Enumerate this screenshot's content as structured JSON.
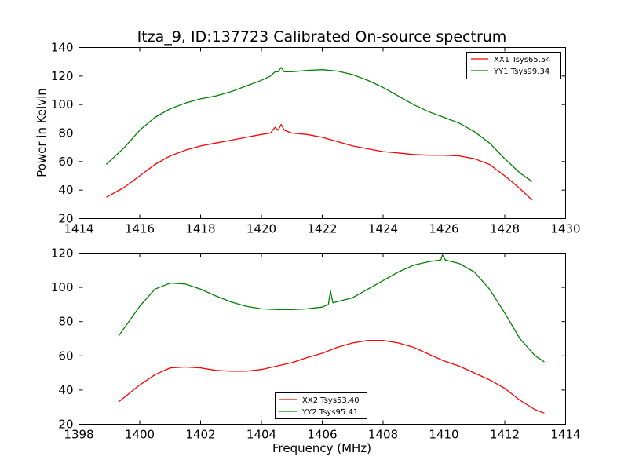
{
  "chart_data": [
    {
      "type": "line",
      "title": "Itza_9, ID:137723 Calibrated On-source spectrum",
      "xlabel": "",
      "ylabel": "Power in Kelvin",
      "xlim": [
        1414,
        1430
      ],
      "ylim": [
        20,
        140
      ],
      "xticks": [
        "1414",
        "1416",
        "1418",
        "1420",
        "1422",
        "1424",
        "1426",
        "1428",
        "1430"
      ],
      "yticks": [
        "20",
        "40",
        "60",
        "80",
        "100",
        "120",
        "140"
      ],
      "legend_position": "upper-right",
      "grid": false,
      "series": [
        {
          "name": "XX1 Tsys65.54",
          "color": "#ff0000",
          "points": [
            [
              1414.9,
              35
            ],
            [
              1415.5,
              42
            ],
            [
              1416,
              50
            ],
            [
              1416.5,
              58
            ],
            [
              1417,
              64
            ],
            [
              1417.5,
              68
            ],
            [
              1418,
              71
            ],
            [
              1418.5,
              73
            ],
            [
              1419,
              75
            ],
            [
              1419.5,
              77
            ],
            [
              1420,
              79
            ],
            [
              1420.3,
              80
            ],
            [
              1420.45,
              84
            ],
            [
              1420.55,
              82
            ],
            [
              1420.65,
              86
            ],
            [
              1420.75,
              82
            ],
            [
              1421,
              80
            ],
            [
              1421.5,
              79
            ],
            [
              1422,
              77
            ],
            [
              1422.5,
              74
            ],
            [
              1423,
              71
            ],
            [
              1423.5,
              69
            ],
            [
              1424,
              67
            ],
            [
              1424.5,
              66
            ],
            [
              1425,
              65
            ],
            [
              1425.5,
              64.5
            ],
            [
              1426,
              64.5
            ],
            [
              1426.5,
              64
            ],
            [
              1427,
              62
            ],
            [
              1427.5,
              58
            ],
            [
              1428,
              50
            ],
            [
              1428.5,
              41
            ],
            [
              1428.9,
              33
            ]
          ]
        },
        {
          "name": "YY1 Tsys99.34",
          "color": "#008000",
          "points": [
            [
              1414.9,
              58
            ],
            [
              1415.5,
              70
            ],
            [
              1416,
              82
            ],
            [
              1416.5,
              91
            ],
            [
              1417,
              97
            ],
            [
              1417.5,
              101
            ],
            [
              1418,
              104
            ],
            [
              1418.5,
              106
            ],
            [
              1419,
              109
            ],
            [
              1419.5,
              113
            ],
            [
              1420,
              117
            ],
            [
              1420.3,
              120
            ],
            [
              1420.45,
              123
            ],
            [
              1420.55,
              123
            ],
            [
              1420.65,
              126
            ],
            [
              1420.75,
              123
            ],
            [
              1421,
              123
            ],
            [
              1421.5,
              124
            ],
            [
              1422,
              124.5
            ],
            [
              1422.5,
              123.5
            ],
            [
              1423,
              121
            ],
            [
              1423.5,
              117
            ],
            [
              1424,
              112
            ],
            [
              1424.5,
              106
            ],
            [
              1425,
              100
            ],
            [
              1425.5,
              95
            ],
            [
              1426,
              91
            ],
            [
              1426.5,
              87
            ],
            [
              1427,
              81
            ],
            [
              1427.5,
              73
            ],
            [
              1428,
              62
            ],
            [
              1428.5,
              52
            ],
            [
              1428.9,
              46
            ]
          ]
        }
      ]
    },
    {
      "type": "line",
      "title": "",
      "xlabel": "Frequency (MHz)",
      "ylabel": "",
      "xlim": [
        1398,
        1414
      ],
      "ylim": [
        20,
        120
      ],
      "xticks": [
        "1398",
        "1400",
        "1402",
        "1404",
        "1406",
        "1408",
        "1410",
        "1412",
        "1414"
      ],
      "yticks": [
        "20",
        "40",
        "60",
        "80",
        "100",
        "120"
      ],
      "legend_position": "lower-center",
      "grid": false,
      "series": [
        {
          "name": "XX2 Tsys53.40",
          "color": "#ff0000",
          "points": [
            [
              1399.3,
              33
            ],
            [
              1400,
              43
            ],
            [
              1400.5,
              49
            ],
            [
              1401,
              53
            ],
            [
              1401.5,
              53.5
            ],
            [
              1402,
              53
            ],
            [
              1402.5,
              51.5
            ],
            [
              1403,
              51
            ],
            [
              1403.5,
              51
            ],
            [
              1404,
              52
            ],
            [
              1404.5,
              54
            ],
            [
              1405,
              56
            ],
            [
              1405.5,
              59
            ],
            [
              1406,
              61.5
            ],
            [
              1406.5,
              65
            ],
            [
              1407,
              67.5
            ],
            [
              1407.5,
              69
            ],
            [
              1408,
              69
            ],
            [
              1408.5,
              67.5
            ],
            [
              1409,
              65
            ],
            [
              1409.5,
              61
            ],
            [
              1410,
              57
            ],
            [
              1410.5,
              54
            ],
            [
              1411,
              50
            ],
            [
              1411.5,
              46
            ],
            [
              1412,
              41
            ],
            [
              1412.5,
              34
            ],
            [
              1413,
              28.5
            ],
            [
              1413.3,
              26.5
            ]
          ]
        },
        {
          "name": "YY2 Tsys95.41",
          "color": "#008000",
          "points": [
            [
              1399.3,
              71.5
            ],
            [
              1399.6,
              79
            ],
            [
              1400,
              89
            ],
            [
              1400.5,
              99
            ],
            [
              1401,
              102.5
            ],
            [
              1401.5,
              102
            ],
            [
              1402,
              99
            ],
            [
              1402.5,
              95
            ],
            [
              1403,
              91.5
            ],
            [
              1403.5,
              89
            ],
            [
              1404,
              87.5
            ],
            [
              1404.5,
              87
            ],
            [
              1405,
              87
            ],
            [
              1405.5,
              87.5
            ],
            [
              1406,
              88.5
            ],
            [
              1406.2,
              90
            ],
            [
              1406.27,
              98
            ],
            [
              1406.35,
              91
            ],
            [
              1407,
              94
            ],
            [
              1407.5,
              99
            ],
            [
              1408,
              104
            ],
            [
              1408.5,
              109
            ],
            [
              1409,
              113
            ],
            [
              1409.5,
              115
            ],
            [
              1409.9,
              116
            ],
            [
              1409.95,
              119
            ],
            [
              1410.05,
              116
            ],
            [
              1410.5,
              114
            ],
            [
              1411,
              109
            ],
            [
              1411.5,
              99
            ],
            [
              1412,
              85
            ],
            [
              1412.5,
              70
            ],
            [
              1413,
              60
            ],
            [
              1413.3,
              56.5
            ]
          ]
        }
      ]
    }
  ]
}
